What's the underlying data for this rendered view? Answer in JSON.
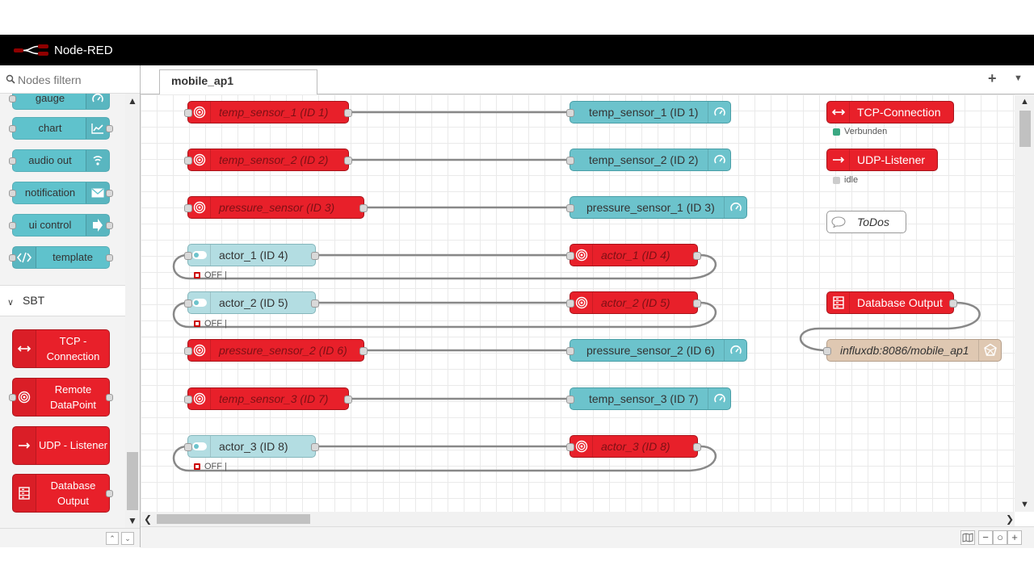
{
  "app": {
    "title": "Node-RED"
  },
  "palette": {
    "search_placeholder": "Nodes filtern",
    "dashboard_nodes": [
      {
        "label": "gauge",
        "icon": "gauge-icon"
      },
      {
        "label": "chart",
        "icon": "chart-icon"
      },
      {
        "label": "audio out",
        "icon": "audio-icon"
      },
      {
        "label": "notification",
        "icon": "envelope-icon"
      },
      {
        "label": "ui control",
        "icon": "arrow-right-icon"
      },
      {
        "label": "template",
        "icon": "code-icon"
      }
    ],
    "section": {
      "name": "SBT"
    },
    "sbt_nodes": [
      {
        "label": "TCP - Connection",
        "icon": "bidirectional-arrow-icon"
      },
      {
        "label": "Remote DataPoint",
        "icon": "target-icon"
      },
      {
        "label": "UDP - Listener",
        "icon": "arrow-right-icon"
      },
      {
        "label": "Database Output",
        "icon": "database-icon"
      }
    ]
  },
  "workspace": {
    "tab": {
      "label": "mobile_ap1"
    },
    "flow": {
      "rows": [
        {
          "source": "temp_sensor_1 (ID 1)",
          "target": "temp_sensor_1 (ID 1)"
        },
        {
          "source": "temp_sensor_2 (ID 2)",
          "target": "temp_sensor_2 (ID 2)"
        },
        {
          "source": "pressure_sensor (ID 3)",
          "target": "pressure_sensor_1 (ID 3)"
        },
        {
          "source": "actor_1 (ID 4)",
          "target": "actor_1 (ID 4)",
          "status": "OFF |"
        },
        {
          "source": "actor_2 (ID 5)",
          "target": "actor_2 (ID 5)",
          "status": "OFF |"
        },
        {
          "source": "pressure_sensor_2 (ID 6)",
          "target": "pressure_sensor_2 (ID 6)"
        },
        {
          "source": "temp_sensor_3 (ID 7)",
          "target": "temp_sensor_3 (ID 7)"
        },
        {
          "source": "actor_3 (ID 8)",
          "target": "actor_3 (ID 8)",
          "status": "OFF |"
        }
      ],
      "config_nodes": {
        "tcp": {
          "label": "TCP-Connection",
          "status": "Verbunden",
          "status_color": "#3aa882"
        },
        "udp": {
          "label": "UDP-Listener",
          "status": "idle",
          "status_color": "#cccccc"
        },
        "comment": {
          "label": "ToDos"
        },
        "db_output": {
          "label": "Database Output"
        },
        "influx": {
          "label": "influxdb:8086/mobile_ap1"
        }
      }
    }
  },
  "colors": {
    "node_red": "#e8202a",
    "dashboard_teal": "#6cc3cc",
    "header_bg": "#000000"
  }
}
